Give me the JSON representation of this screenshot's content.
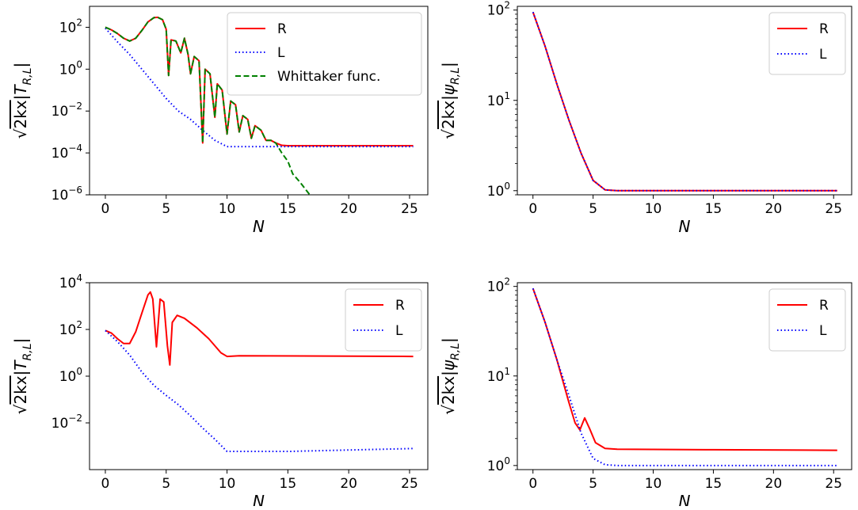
{
  "chart_data": [
    {
      "type": "line",
      "panel": "top-left",
      "xlabel": "N",
      "ylabel": "√2kx|T_{R,L}|",
      "yscale": "log",
      "xlim": [
        -1.3,
        26.5
      ],
      "ylim": [
        1e-06,
        1000
      ],
      "xticks": [
        0,
        5,
        10,
        15,
        20,
        25
      ],
      "yticks": [
        1e-06,
        0.0001,
        0.01,
        1,
        100
      ],
      "legend_position": "upper right",
      "series": [
        {
          "name": "R",
          "color": "#ff0000",
          "style": "solid",
          "points": [
            [
              0,
              100
            ],
            [
              0.5,
              75
            ],
            [
              1,
              50
            ],
            [
              1.5,
              30
            ],
            [
              2,
              22
            ],
            [
              2.5,
              30
            ],
            [
              3,
              70
            ],
            [
              3.5,
              180
            ],
            [
              4,
              290
            ],
            [
              4.3,
              300
            ],
            [
              4.7,
              230
            ],
            [
              5,
              80
            ],
            [
              5.2,
              0.5
            ],
            [
              5.4,
              25
            ],
            [
              5.8,
              22
            ],
            [
              6.2,
              6
            ],
            [
              6.5,
              30
            ],
            [
              6.8,
              5
            ],
            [
              7,
              0.6
            ],
            [
              7.3,
              4
            ],
            [
              7.7,
              2.5
            ],
            [
              8,
              0.0003
            ],
            [
              8.2,
              1
            ],
            [
              8.6,
              0.6
            ],
            [
              9,
              0.005
            ],
            [
              9.2,
              0.2
            ],
            [
              9.6,
              0.1
            ],
            [
              10,
              0.0008
            ],
            [
              10.3,
              0.03
            ],
            [
              10.7,
              0.02
            ],
            [
              11,
              0.001
            ],
            [
              11.3,
              0.006
            ],
            [
              11.7,
              0.004
            ],
            [
              12,
              0.0005
            ],
            [
              12.3,
              0.002
            ],
            [
              12.8,
              0.0012
            ],
            [
              13.2,
              0.0004
            ],
            [
              13.6,
              0.0004
            ],
            [
              14,
              0.0003
            ],
            [
              14.5,
              0.00023
            ],
            [
              15,
              0.00022
            ],
            [
              20,
              0.00022
            ],
            [
              25.3,
              0.00022
            ]
          ]
        },
        {
          "name": "L",
          "color": "#0000ff",
          "style": "dotted",
          "points": [
            [
              0,
              90
            ],
            [
              1,
              20
            ],
            [
              2,
              5
            ],
            [
              3,
              1
            ],
            [
              4,
              0.2
            ],
            [
              5,
              0.04
            ],
            [
              6,
              0.01
            ],
            [
              7,
              0.004
            ],
            [
              8,
              0.0012
            ],
            [
              9,
              0.0004
            ],
            [
              10,
              0.0002
            ],
            [
              11,
              0.0002
            ],
            [
              25.3,
              0.0002
            ]
          ]
        },
        {
          "name": "Whittaker func.",
          "color": "#008000",
          "style": "dashed",
          "points": [
            [
              0,
              100
            ],
            [
              0.5,
              75
            ],
            [
              1,
              50
            ],
            [
              1.5,
              30
            ],
            [
              2,
              22
            ],
            [
              2.5,
              30
            ],
            [
              3,
              70
            ],
            [
              3.5,
              180
            ],
            [
              4,
              290
            ],
            [
              4.3,
              300
            ],
            [
              4.7,
              230
            ],
            [
              5,
              80
            ],
            [
              5.2,
              0.5
            ],
            [
              5.4,
              25
            ],
            [
              5.8,
              22
            ],
            [
              6.2,
              6
            ],
            [
              6.5,
              30
            ],
            [
              6.8,
              5
            ],
            [
              7,
              0.6
            ],
            [
              7.3,
              4
            ],
            [
              7.7,
              2.5
            ],
            [
              8,
              0.0003
            ],
            [
              8.2,
              1
            ],
            [
              8.6,
              0.6
            ],
            [
              9,
              0.005
            ],
            [
              9.2,
              0.2
            ],
            [
              9.6,
              0.1
            ],
            [
              10,
              0.0008
            ],
            [
              10.3,
              0.03
            ],
            [
              10.7,
              0.02
            ],
            [
              11,
              0.001
            ],
            [
              11.3,
              0.006
            ],
            [
              11.7,
              0.004
            ],
            [
              12,
              0.0005
            ],
            [
              12.3,
              0.002
            ],
            [
              12.8,
              0.0012
            ],
            [
              13.2,
              0.0004
            ],
            [
              13.6,
              0.0004
            ],
            [
              14,
              0.0003
            ],
            [
              14.5,
              0.0001
            ],
            [
              15,
              4e-05
            ],
            [
              15.4,
              1e-05
            ],
            [
              16,
              4e-06
            ],
            [
              16.8,
              1e-06
            ]
          ]
        }
      ]
    },
    {
      "type": "line",
      "panel": "top-right",
      "xlabel": "N",
      "ylabel": "√2kx|ψ_{R,L}|",
      "yscale": "log",
      "xlim": [
        -1.3,
        26.5
      ],
      "ylim": [
        0.9,
        110
      ],
      "xticks": [
        0,
        5,
        10,
        15,
        20,
        25
      ],
      "yticks": [
        1,
        10,
        100
      ],
      "legend_position": "upper right",
      "series": [
        {
          "name": "R",
          "color": "#ff0000",
          "style": "solid",
          "points": [
            [
              0,
              95
            ],
            [
              1,
              40
            ],
            [
              2,
              15
            ],
            [
              3,
              6
            ],
            [
              4,
              2.6
            ],
            [
              5,
              1.3
            ],
            [
              6,
              1.02
            ],
            [
              7,
              1
            ],
            [
              25.3,
              1
            ]
          ]
        },
        {
          "name": "L",
          "color": "#0000ff",
          "style": "dotted",
          "points": [
            [
              0,
              95
            ],
            [
              1,
              40
            ],
            [
              2,
              15
            ],
            [
              3,
              6
            ],
            [
              4,
              2.6
            ],
            [
              5,
              1.3
            ],
            [
              6,
              1.02
            ],
            [
              7,
              1
            ],
            [
              25.3,
              1
            ]
          ]
        }
      ]
    },
    {
      "type": "line",
      "panel": "bottom-left",
      "xlabel": "N",
      "ylabel": "√2kx|T_{R,L}|",
      "yscale": "log",
      "xlim": [
        -1.3,
        26.5
      ],
      "ylim": [
        0.0001,
        10000
      ],
      "xticks": [
        0,
        5,
        10,
        15,
        20,
        25
      ],
      "yticks": [
        0.01,
        1,
        100,
        10000
      ],
      "legend_position": "upper right",
      "series": [
        {
          "name": "R",
          "color": "#ff0000",
          "style": "solid",
          "points": [
            [
              0,
              90
            ],
            [
              0.5,
              70
            ],
            [
              1,
              40
            ],
            [
              1.5,
              25
            ],
            [
              2,
              25
            ],
            [
              2.5,
              80
            ],
            [
              3,
              500
            ],
            [
              3.5,
              3000
            ],
            [
              3.7,
              4000
            ],
            [
              3.9,
              2000
            ],
            [
              4.2,
              18
            ],
            [
              4.5,
              2000
            ],
            [
              4.8,
              1500
            ],
            [
              5.1,
              20
            ],
            [
              5.3,
              3
            ],
            [
              5.5,
              200
            ],
            [
              5.9,
              400
            ],
            [
              6.5,
              300
            ],
            [
              7.5,
              120
            ],
            [
              8.5,
              40
            ],
            [
              9.5,
              10
            ],
            [
              10,
              7
            ],
            [
              11,
              7.5
            ],
            [
              25.3,
              7
            ]
          ]
        },
        {
          "name": "L",
          "color": "#0000ff",
          "style": "dotted",
          "points": [
            [
              0,
              90
            ],
            [
              1,
              30
            ],
            [
              2,
              8
            ],
            [
              3,
              1.5
            ],
            [
              4,
              0.4
            ],
            [
              5,
              0.15
            ],
            [
              6,
              0.06
            ],
            [
              7,
              0.02
            ],
            [
              8,
              0.006
            ],
            [
              9,
              0.002
            ],
            [
              10,
              0.0006
            ],
            [
              10.2,
              0.0006
            ],
            [
              15,
              0.0006
            ],
            [
              25.3,
              0.0008
            ]
          ]
        }
      ]
    },
    {
      "type": "line",
      "panel": "bottom-right",
      "xlabel": "N",
      "ylabel": "√2kx|ψ_{R,L}|",
      "yscale": "log",
      "xlim": [
        -1.3,
        26.5
      ],
      "ylim": [
        0.9,
        110
      ],
      "xticks": [
        0,
        5,
        10,
        15,
        20,
        25
      ],
      "yticks": [
        1,
        10,
        100
      ],
      "legend_position": "upper right",
      "series": [
        {
          "name": "R",
          "color": "#ff0000",
          "style": "solid",
          "points": [
            [
              0,
              95
            ],
            [
              1,
              40
            ],
            [
              2,
              15
            ],
            [
              3,
              5
            ],
            [
              3.5,
              3
            ],
            [
              3.9,
              2.5
            ],
            [
              4.3,
              3.4
            ],
            [
              4.7,
              2.6
            ],
            [
              5.2,
              1.8
            ],
            [
              6,
              1.55
            ],
            [
              7,
              1.52
            ],
            [
              15,
              1.5
            ],
            [
              25.3,
              1.48
            ]
          ]
        },
        {
          "name": "L",
          "color": "#0000ff",
          "style": "dotted",
          "points": [
            [
              0,
              95
            ],
            [
              1,
              40
            ],
            [
              2,
              15
            ],
            [
              3,
              6
            ],
            [
              4,
              2.3
            ],
            [
              5,
              1.2
            ],
            [
              6,
              1.02
            ],
            [
              7,
              1
            ],
            [
              25.3,
              1
            ]
          ]
        }
      ]
    }
  ]
}
